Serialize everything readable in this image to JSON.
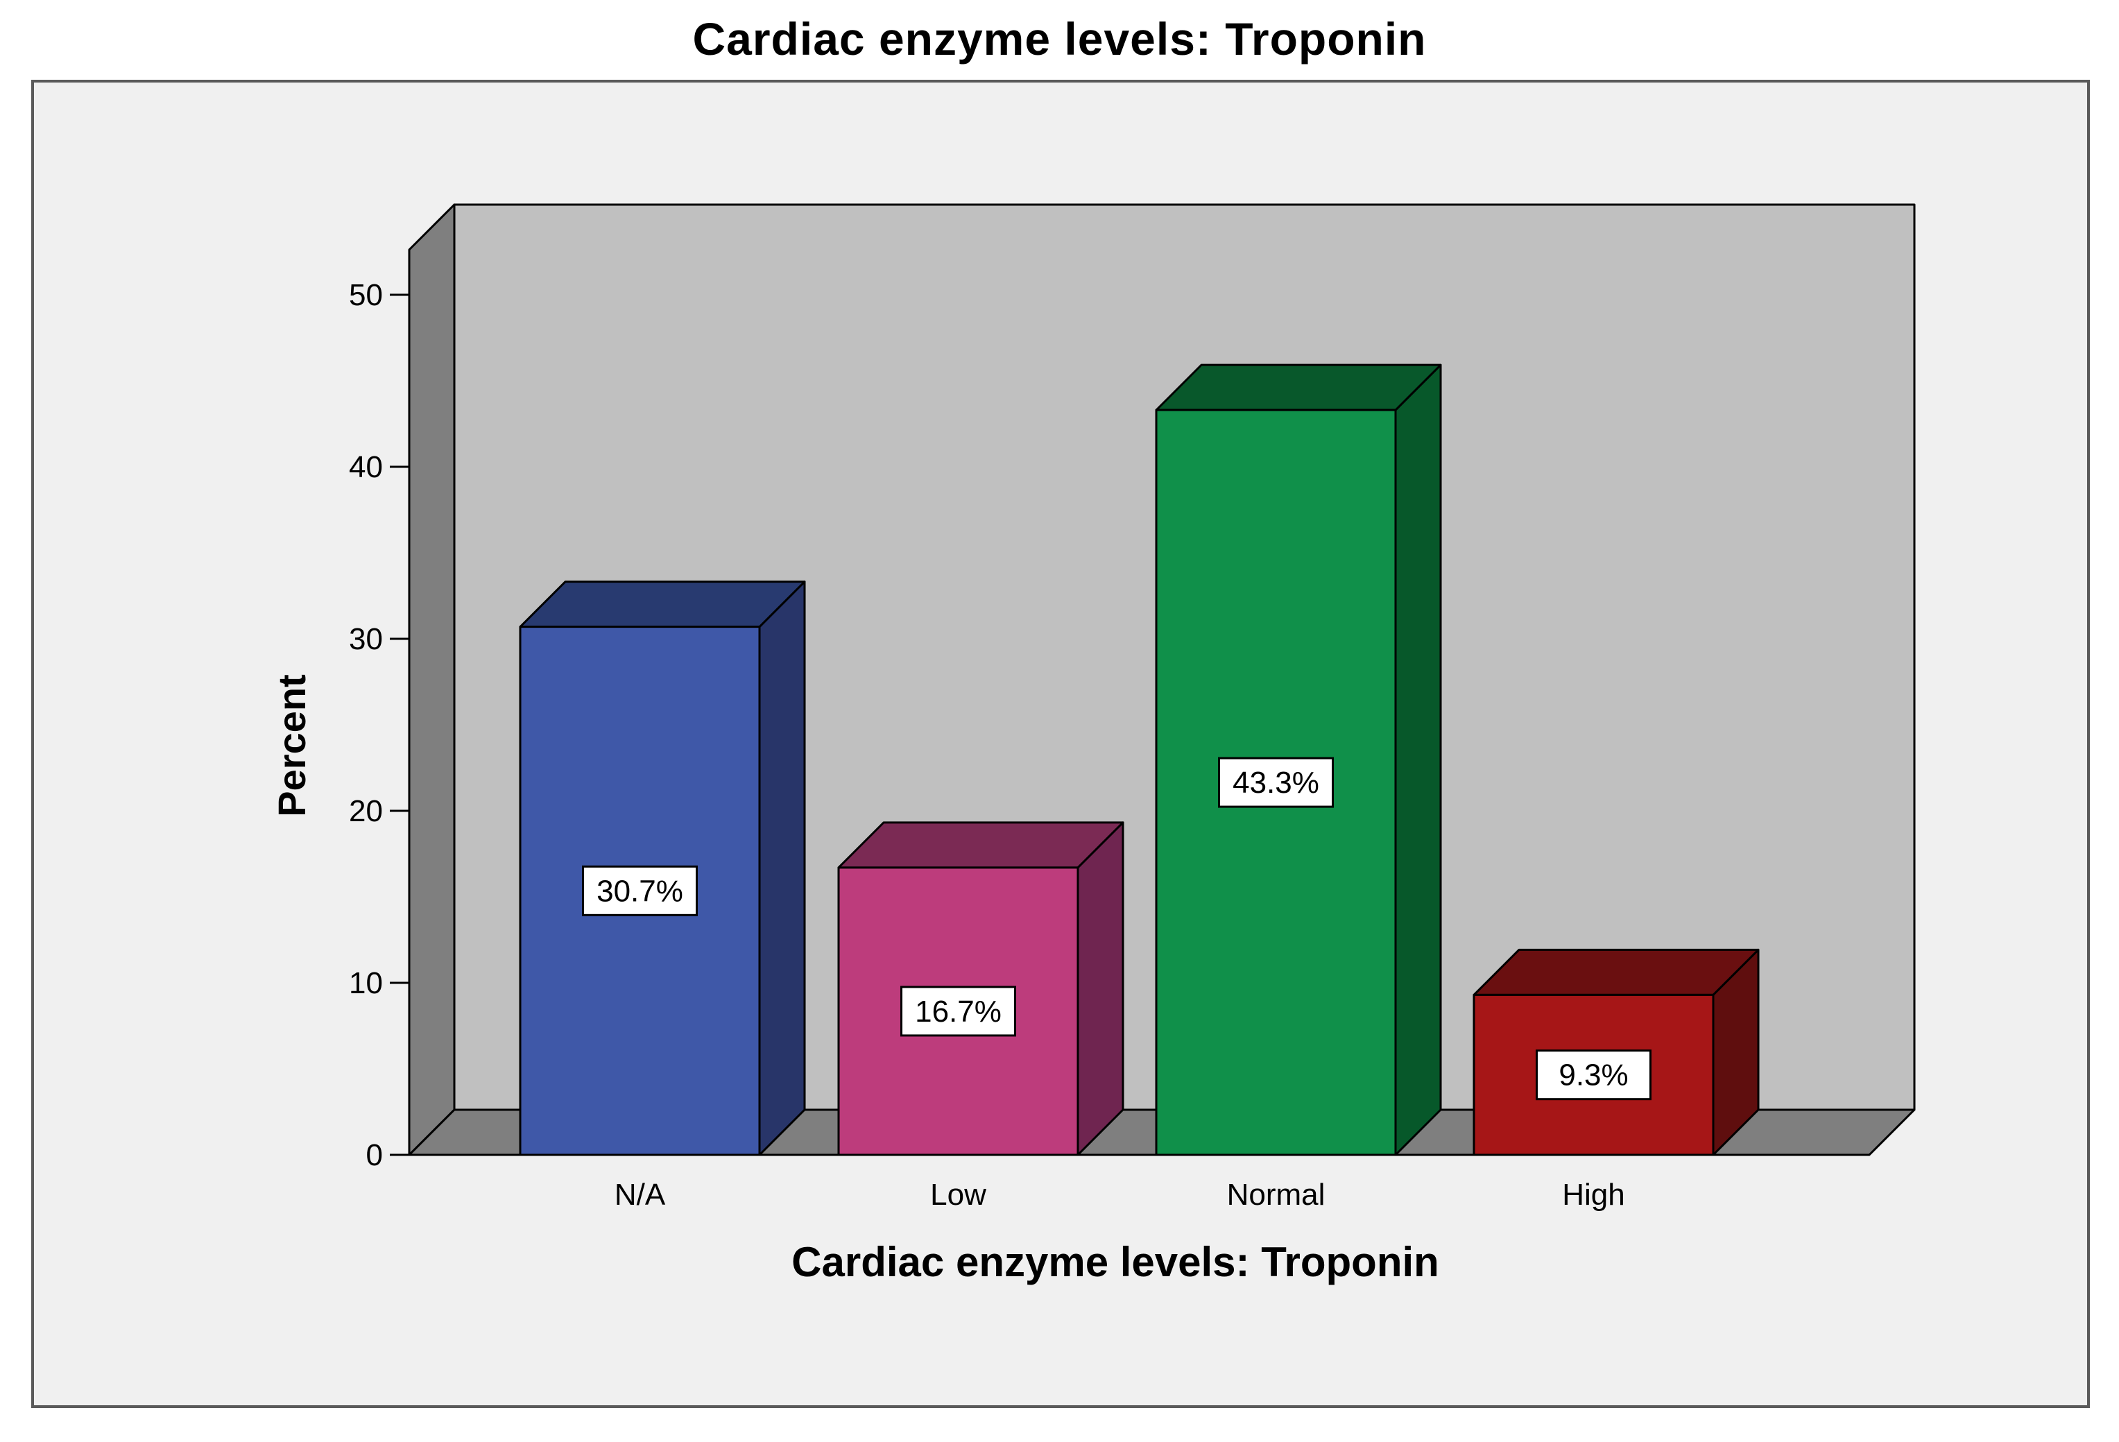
{
  "chart_data": {
    "type": "bar",
    "title": "Cardiac enzyme levels: Troponin",
    "xlabel": "Cardiac enzyme levels: Troponin",
    "ylabel": "Percent",
    "ylim": [
      0,
      50
    ],
    "yticks": [
      "0",
      "10",
      "20",
      "30",
      "40",
      "50"
    ],
    "categories": [
      "N/A",
      "Low",
      "Normal",
      "High"
    ],
    "values": [
      30.7,
      16.7,
      43.3,
      9.3
    ],
    "data_labels": [
      "30.7%",
      "16.7%",
      "43.3%",
      "9.3%"
    ],
    "colors": {
      "bar_front": [
        "#3f58a8",
        "#bd3c7c",
        "#10904a",
        "#a61617"
      ],
      "bar_side": [
        "#283569",
        "#6f2550",
        "#07582a",
        "#5f0e0e"
      ],
      "bar_top": [
        "#283a70",
        "#7b2a54",
        "#08582b",
        "#6a0f10"
      ],
      "back_wall": "#c0c0c0",
      "side_wall": "#7f7f7f",
      "floor": "#7f7f7f",
      "frame_bg": "#f0f0f0"
    },
    "grid": false,
    "legend": "none",
    "style": "3d-bar"
  }
}
